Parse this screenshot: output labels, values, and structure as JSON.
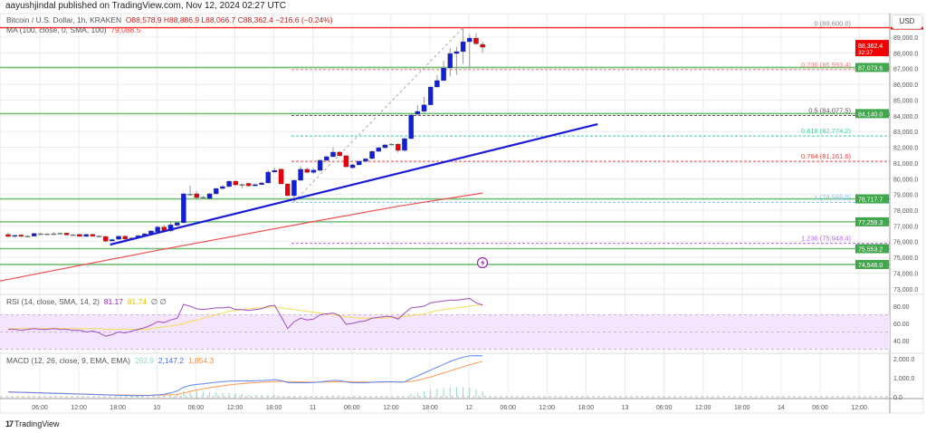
{
  "attribution": "aayushjindal published on TradingView.com, Nov 12, 2024 02:27 UTC",
  "legend": {
    "symbol": "Bitcoin / U.S. Dollar, 1h, KRAKEN",
    "ohlc": "O88,578.9 H88,886.9 L88,066.7 C88,362.4 −216.6 (−0.24%)",
    "ma_label": "MA (100, close, 0, SMA, 100)",
    "ma_value": "79,088.5"
  },
  "rsi_legend": {
    "label": "RSI (14, close, SMA, 14, 2)",
    "rsi": "81.17",
    "sma": "81.74",
    "extra": "∅ ∅"
  },
  "macd_legend": {
    "label": "MACD (12, 26, close, 9, EMA, EMA)",
    "hist": "292.9",
    "macd": "2,147.2",
    "signal": "1,854.3"
  },
  "currency": "USD",
  "logo": "TradingView",
  "colors": {
    "up": "#1020d8",
    "down": "#e8000b",
    "wick": "#9a9a9a",
    "ma": "#f05050",
    "trendline": "#1a1ad8",
    "level": "#4caf50",
    "rsi": "#a14dc4",
    "rsi_sma": "#f5dc5a",
    "macd": "#5b86f5",
    "signal": "#ff9a55",
    "hist": "#8fd9c8",
    "rsi_band": "#f3e5fb"
  },
  "chart_data": {
    "type": "candlestick",
    "interval": "1h",
    "candles_ohlc": [
      [
        76450,
        76550,
        76280,
        76330
      ],
      [
        76330,
        76420,
        76250,
        76400
      ],
      [
        76420,
        76480,
        76300,
        76330
      ],
      [
        76340,
        76400,
        76300,
        76350
      ],
      [
        76350,
        76560,
        76330,
        76520
      ],
      [
        76500,
        76560,
        76460,
        76490
      ],
      [
        76490,
        76540,
        76450,
        76480
      ],
      [
        76480,
        76600,
        76440,
        76500
      ],
      [
        76500,
        76580,
        76470,
        76530
      ],
      [
        76540,
        76580,
        76400,
        76420
      ],
      [
        76420,
        76480,
        76380,
        76440
      ],
      [
        76460,
        76490,
        76310,
        76330
      ],
      [
        76330,
        76490,
        76300,
        76460
      ],
      [
        76460,
        76500,
        76320,
        76340
      ],
      [
        76350,
        76400,
        76300,
        76340
      ],
      [
        76330,
        76360,
        75980,
        76030
      ],
      [
        76040,
        76200,
        76000,
        76130
      ],
      [
        76150,
        76380,
        76120,
        76340
      ],
      [
        76340,
        76400,
        76120,
        76160
      ],
      [
        76220,
        76280,
        76180,
        76240
      ],
      [
        76250,
        76420,
        76230,
        76380
      ],
      [
        76380,
        76560,
        76350,
        76500
      ],
      [
        76500,
        76720,
        76460,
        76680
      ],
      [
        76620,
        77000,
        76600,
        76930
      ],
      [
        76930,
        77050,
        76650,
        76690
      ],
      [
        76680,
        77300,
        76600,
        77070
      ],
      [
        77030,
        77250,
        77000,
        77200
      ],
      [
        77200,
        79100,
        77150,
        79040
      ],
      [
        79020,
        79550,
        78900,
        79000
      ],
      [
        79040,
        79200,
        78750,
        78800
      ],
      [
        78800,
        78900,
        78700,
        78820
      ],
      [
        78740,
        79100,
        78700,
        79040
      ],
      [
        79040,
        79420,
        79000,
        79380
      ],
      [
        79380,
        79600,
        79300,
        79500
      ],
      [
        79500,
        79900,
        79450,
        79840
      ],
      [
        79840,
        79900,
        79550,
        79610
      ],
      [
        79630,
        79700,
        79400,
        79630
      ],
      [
        79700,
        79750,
        79500,
        79550
      ],
      [
        79550,
        79700,
        79500,
        79630
      ],
      [
        79630,
        79800,
        79600,
        79730
      ],
      [
        79730,
        80550,
        79700,
        80420
      ],
      [
        80420,
        80700,
        80400,
        80530
      ],
      [
        80600,
        80650,
        79650,
        79670
      ],
      [
        79670,
        79700,
        78900,
        78920
      ],
      [
        78920,
        79950,
        78555,
        79900
      ],
      [
        79900,
        80800,
        79850,
        80600
      ],
      [
        80600,
        80700,
        80350,
        80400
      ],
      [
        80400,
        80650,
        80300,
        80550
      ],
      [
        80530,
        81250,
        80450,
        81170
      ],
      [
        81170,
        81450,
        81100,
        81400
      ],
      [
        81400,
        82000,
        81350,
        81690
      ],
      [
        81690,
        81750,
        81400,
        81460
      ],
      [
        81460,
        81500,
        80700,
        80760
      ],
      [
        80700,
        80950,
        80650,
        80880
      ],
      [
        80880,
        81150,
        80850,
        81110
      ],
      [
        81110,
        81300,
        81050,
        81260
      ],
      [
        81280,
        81800,
        81250,
        81740
      ],
      [
        81740,
        82050,
        81700,
        81970
      ],
      [
        81970,
        82200,
        81900,
        82150
      ],
      [
        82180,
        82250,
        82150,
        82200
      ],
      [
        82200,
        82250,
        81650,
        81800
      ],
      [
        81800,
        82600,
        81700,
        82550
      ],
      [
        82550,
        84100,
        82500,
        84050
      ],
      [
        84100,
        84700,
        84050,
        84280
      ],
      [
        84280,
        85200,
        84200,
        84700
      ],
      [
        84700,
        85850,
        84650,
        85830
      ],
      [
        85830,
        86600,
        85800,
        86240
      ],
      [
        86240,
        87500,
        86200,
        87040
      ],
      [
        87040,
        88300,
        86500,
        87960
      ],
      [
        87960,
        88400,
        86600,
        88080
      ],
      [
        88080,
        89600,
        87300,
        88710
      ],
      [
        88710,
        89200,
        87000,
        88940
      ],
      [
        88940,
        89250,
        88500,
        88580
      ],
      [
        88540,
        88700,
        88000,
        88362.4
      ]
    ],
    "ma100_points": [
      [
        0,
        73600
      ],
      [
        23,
        75450
      ],
      [
        46,
        77200
      ],
      [
        60,
        78250
      ],
      [
        73,
        79088.5
      ]
    ],
    "trendline": [
      [
        15.7,
        75812
      ],
      [
        90.7,
        83471
      ]
    ],
    "fib_connector": [
      [
        44,
        78555
      ],
      [
        70,
        89600
      ]
    ],
    "price_axis": {
      "ticks": [
        "89,000.0",
        "88,000.0",
        "87,000.0",
        "86,000.0",
        "85,000.0",
        "84,000.0",
        "83,000.0",
        "82,000.0",
        "81,000.0",
        "80,000.0",
        "79,000.0",
        "78,000.0",
        "77,000.0",
        "76,000.0",
        "75,000.0",
        "74,000.0",
        "73,000.0"
      ],
      "range": [
        73000,
        89600
      ]
    },
    "current_price": {
      "value": 88362.4,
      "label": "88,362.4",
      "countdown": "32:37"
    },
    "resistance_line": 89600,
    "levels": [
      {
        "value": 87073.6,
        "label": "87,073.6"
      },
      {
        "value": 84140.0,
        "label": "84,140.0"
      },
      {
        "value": 78717.7,
        "label": "78,717.7"
      },
      {
        "value": 77259.3,
        "label": "77,259.3"
      },
      {
        "value": 75553.2,
        "label": "75,553.2"
      },
      {
        "value": 74546.0,
        "label": "74,546.0"
      }
    ],
    "fib_levels": [
      {
        "ratio": "0",
        "value": 89600.0,
        "label": "0 (89,600.0)",
        "color": "#888888"
      },
      {
        "ratio": "0.236",
        "value": 86993.4,
        "label": "0.236 (86,993.4)",
        "color": "#ef7d7d"
      },
      {
        "ratio": "0.5",
        "value": 84077.5,
        "label": "0.5 (84,077.5)",
        "color": "#6b4e5e"
      },
      {
        "ratio": "0.618",
        "value": 82774.2,
        "label": "0.618 (82,774.2)",
        "color": "#3ecf9e"
      },
      {
        "ratio": "0.764",
        "value": 81161.6,
        "label": "0.764 (81,161.6)",
        "color": "#f04444"
      },
      {
        "ratio": "1",
        "value": 78555.0,
        "label": "1 (78,555.0)",
        "color": "#7fbff5"
      },
      {
        "ratio": "1.236",
        "value": 75948.4,
        "label": "1.236 (75,948.4)",
        "color": "#b36ae2"
      }
    ],
    "rsi": {
      "ticks": [
        "80.00",
        "60.00",
        "40.00"
      ],
      "band": [
        30,
        70
      ],
      "values": [
        53,
        53,
        52,
        53,
        54,
        53,
        53,
        54,
        53,
        53,
        52,
        52,
        50,
        51,
        49,
        45,
        47,
        50,
        49,
        51,
        53,
        55,
        58,
        62,
        61,
        64,
        66,
        82,
        80,
        77,
        76,
        77,
        78,
        78,
        79,
        76,
        76,
        75,
        76,
        77,
        80,
        81,
        68,
        54,
        62,
        66,
        64,
        65,
        70,
        71,
        72,
        69,
        59,
        60,
        62,
        63,
        66,
        67,
        68,
        68,
        65,
        72,
        78,
        79,
        80,
        84,
        85,
        86,
        87,
        87,
        88,
        89,
        84,
        81.17
      ],
      "sma": [
        54,
        54,
        54,
        54,
        54,
        54,
        54,
        54,
        54,
        54,
        54,
        54,
        54,
        54,
        54,
        53,
        53,
        53,
        53,
        53,
        53,
        53,
        54,
        55,
        56,
        57,
        58,
        60,
        62,
        64,
        66,
        68,
        70,
        72,
        74,
        75,
        76,
        77,
        78,
        78,
        79,
        79,
        78,
        77,
        76,
        75,
        74,
        73,
        72,
        71,
        70,
        69,
        68,
        67,
        66,
        66,
        66,
        66,
        66,
        67,
        67,
        68,
        69,
        70,
        71,
        73,
        75,
        76,
        77,
        78,
        79,
        80,
        81,
        81.74
      ]
    },
    "macd": {
      "ticks": [
        "2,000.0",
        "1,000.0",
        "0.0"
      ],
      "macd": [
        250,
        240,
        230,
        220,
        210,
        200,
        190,
        180,
        170,
        160,
        150,
        140,
        130,
        120,
        110,
        100,
        90,
        80,
        70,
        60,
        60,
        70,
        80,
        100,
        130,
        200,
        300,
        500,
        600,
        650,
        680,
        720,
        760,
        790,
        820,
        830,
        830,
        830,
        840,
        850,
        870,
        900,
        850,
        750,
        730,
        740,
        740,
        750,
        780,
        820,
        860,
        850,
        780,
        740,
        730,
        740,
        760,
        780,
        790,
        790,
        770,
        780,
        950,
        1100,
        1250,
        1400,
        1550,
        1700,
        1850,
        1980,
        2080,
        2150,
        2160,
        2147.2
      ],
      "signal": [
        260,
        250,
        240,
        230,
        220,
        210,
        200,
        190,
        180,
        170,
        160,
        150,
        140,
        130,
        120,
        110,
        100,
        95,
        90,
        85,
        80,
        80,
        80,
        85,
        90,
        100,
        120,
        200,
        280,
        350,
        420,
        480,
        530,
        580,
        620,
        660,
        690,
        720,
        740,
        760,
        780,
        800,
        810,
        800,
        790,
        780,
        775,
        770,
        770,
        775,
        780,
        790,
        790,
        785,
        780,
        775,
        770,
        770,
        772,
        775,
        775,
        778,
        810,
        870,
        950,
        1040,
        1140,
        1250,
        1360,
        1470,
        1580,
        1680,
        1780,
        1854.3
      ]
    },
    "time_axis": [
      "06:00",
      "12:00",
      "18:00",
      "10",
      "06:00",
      "12:00",
      "18:00",
      "11",
      "06:00",
      "12:00",
      "18:00",
      "12",
      "06:00",
      "12:00",
      "18:00",
      "13",
      "06:00",
      "12:00",
      "18:00",
      "14",
      "06:00",
      "12:00"
    ],
    "alert_icon": "lightning-bolt-icon"
  }
}
